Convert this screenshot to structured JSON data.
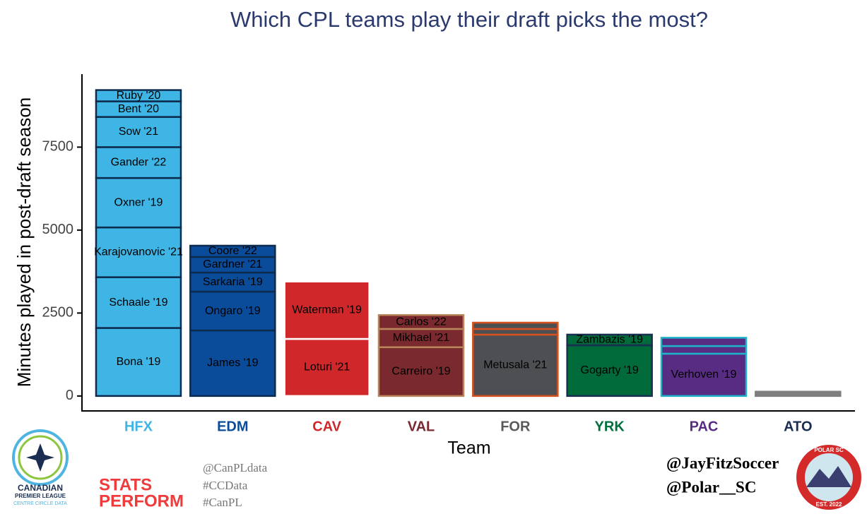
{
  "chart_data": {
    "type": "stacked_bar",
    "title": "Which CPL teams play their draft picks the most?",
    "ylabel": "Minutes played in post-draft season",
    "xlabel": "Team",
    "categories": [
      "HFX",
      "EDM",
      "CAV",
      "VAL",
      "FOR",
      "YRK",
      "PAC",
      "ATO"
    ],
    "ylim": [
      -450,
      9700
    ],
    "yticks": [
      0,
      2500,
      5000,
      7500
    ],
    "stacks": [
      {
        "fill": "#3fb5e5",
        "edge": "#0d2b4e",
        "label_color": "#3fb5e5",
        "segments": [
          {
            "label": "Bona '19",
            "value": 2050
          },
          {
            "label": "Schaale '19",
            "value": 1530
          },
          {
            "label": "Karajovanovic '21",
            "value": 1500
          },
          {
            "label": "Oxner '19",
            "value": 1490
          },
          {
            "label": "Gander '22",
            "value": 930
          },
          {
            "label": "Sow '21",
            "value": 910
          },
          {
            "label": "Bent '20",
            "value": 470
          },
          {
            "label": "Ruby '20",
            "value": 340
          }
        ]
      },
      {
        "fill": "#0a4c9a",
        "edge": "#0d2b4e",
        "label_color": "#0a4c9a",
        "segments": [
          {
            "label": "James '19",
            "value": 1975
          },
          {
            "label": "Ongaro '19",
            "value": 1170
          },
          {
            "label": "Sarkaria '19",
            "value": 575
          },
          {
            "label": "Gardner '21",
            "value": 470
          },
          {
            "label": "Coore '22",
            "value": 340
          }
        ]
      },
      {
        "fill": "#d0282a",
        "edge": "#ffffff",
        "label_color": "#d0282a",
        "segments": [
          {
            "label": "Loturi '21",
            "value": 1720
          },
          {
            "label": "Waterman '19",
            "value": 1730
          },
          {
            "label": null,
            "value": 40
          },
          {
            "label": null,
            "value": 40
          },
          {
            "label": null,
            "value": 40
          }
        ]
      },
      {
        "fill": "#7a2a2e",
        "edge": "#b8865a",
        "label_color": "#7a2a2e",
        "segments": [
          {
            "label": "Carreiro '19",
            "value": 1470
          },
          {
            "label": "Mikhael '21",
            "value": 550
          },
          {
            "label": "Carlos '22",
            "value": 420
          }
        ]
      },
      {
        "fill": "#4d4f53",
        "edge": "#d5521e",
        "label_color": "#5a5a5a",
        "segments": [
          {
            "label": "Metusala '21",
            "value": 1850
          },
          {
            "label": null,
            "value": 170
          },
          {
            "label": null,
            "value": 190
          }
        ]
      },
      {
        "fill": "#006a3a",
        "edge": "#1a2e52",
        "label_color": "#00703c",
        "segments": [
          {
            "label": "Gogarty '19",
            "value": 1530
          },
          {
            "label": "Zambazis '19",
            "value": 320
          }
        ]
      },
      {
        "fill": "#582c83",
        "edge": "#1fb3c9",
        "label_color": "#582c83",
        "segments": [
          {
            "label": "Verhoven '19",
            "value": 1275
          },
          {
            "label": null,
            "value": 230
          },
          {
            "label": null,
            "value": 250
          }
        ]
      },
      {
        "fill": "#7f7f7f",
        "edge": "#7f7f7f",
        "label_color": "#1a2e52",
        "segments": [
          {
            "label": null,
            "value": 130
          }
        ]
      }
    ]
  },
  "footer": {
    "league_name": "CANADIAN",
    "league_sub": "PREMIER LEAGUE",
    "league_data": "CENTRE CIRCLE DATA",
    "stats": "STATS",
    "perform": "PERFORM",
    "tags": [
      "@CanPLdata",
      "#CCData",
      "#CanPL"
    ],
    "handles": [
      "@JayFitzSoccer",
      "@Polar__SC"
    ],
    "badge_top": "POLAR SC",
    "badge_bottom": "EST. 2022"
  }
}
